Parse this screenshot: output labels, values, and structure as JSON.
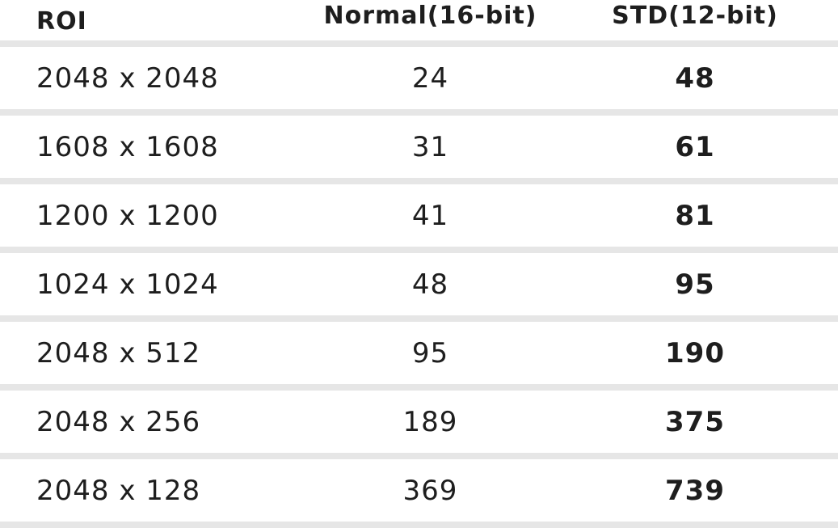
{
  "table": {
    "columns": [
      "ROI",
      "Normal(16-bit)",
      "STD(12-bit)"
    ],
    "rows": [
      {
        "roi": "2048 x 2048",
        "normal": "24",
        "std": "48"
      },
      {
        "roi": "1608 x 1608",
        "normal": "31",
        "std": "61"
      },
      {
        "roi": "1200 x 1200",
        "normal": "41",
        "std": "81"
      },
      {
        "roi": "1024 x 1024",
        "normal": "48",
        "std": "95"
      },
      {
        "roi": "2048 x 512",
        "normal": "95",
        "std": "190"
      },
      {
        "roi": "2048 x 256",
        "normal": "189",
        "std": "375"
      },
      {
        "roi": "2048 x 128",
        "normal": "369",
        "std": "739"
      }
    ]
  },
  "colors": {
    "text": "#1e1e1e",
    "divider": "#e6e6e6",
    "background": "#ffffff"
  },
  "chart_data": {
    "type": "table",
    "title": "",
    "columns": [
      "ROI",
      "Normal(16-bit)",
      "STD(12-bit)"
    ],
    "rows": [
      [
        "2048 x 2048",
        24,
        48
      ],
      [
        "1608 x 1608",
        31,
        61
      ],
      [
        "1200 x 1200",
        41,
        81
      ],
      [
        "1024 x 1024",
        48,
        95
      ],
      [
        "2048 x 512",
        95,
        190
      ],
      [
        "2048 x 256",
        189,
        375
      ],
      [
        "2048 x 128",
        369,
        739
      ]
    ]
  }
}
